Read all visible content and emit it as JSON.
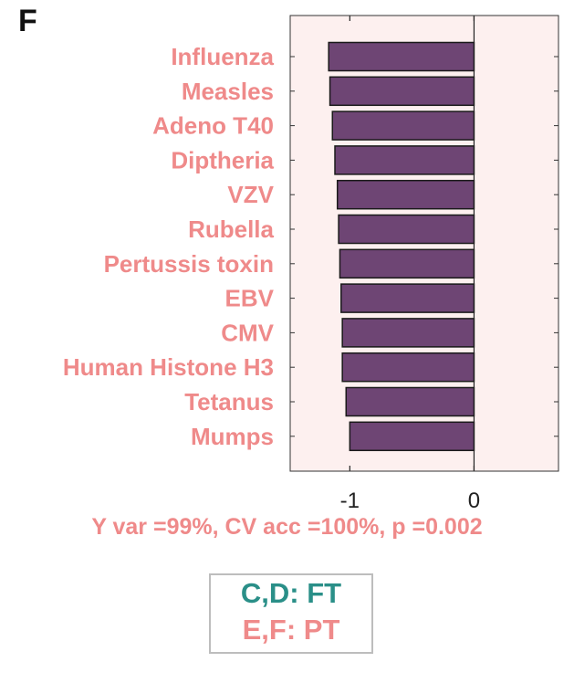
{
  "panel_label": "F",
  "colors": {
    "bar_fill": "#6e4574",
    "bar_stroke": "#1a1a1a",
    "plot_bg": "#fdf0ef",
    "label_pink": "#ef8a8a",
    "legend_teal": "#2a8f88",
    "legend_pink": "#ef8a8a"
  },
  "chart_data": {
    "type": "bar",
    "orientation": "horizontal",
    "categories": [
      "Influenza",
      "Measles",
      "Adeno T40",
      "Diptheria",
      "VZV",
      "Rubella",
      "Pertussis toxin",
      "EBV",
      "CMV",
      "Human Histone H3",
      "Tetanus",
      "Mumps"
    ],
    "values": [
      -1.17,
      -1.16,
      -1.14,
      -1.12,
      -1.1,
      -1.09,
      -1.08,
      -1.07,
      -1.06,
      -1.06,
      -1.03,
      -1.0
    ],
    "xlim": [
      -1.48,
      0.68
    ],
    "xticks": [
      -1,
      0
    ],
    "xtick_labels": [
      "-1",
      "0"
    ],
    "grid": false
  },
  "stats_text": "Y var =99%, CV acc =100%, p =0.002",
  "legend": {
    "line1": "C,D: FT",
    "line2": "E,F: PT"
  }
}
